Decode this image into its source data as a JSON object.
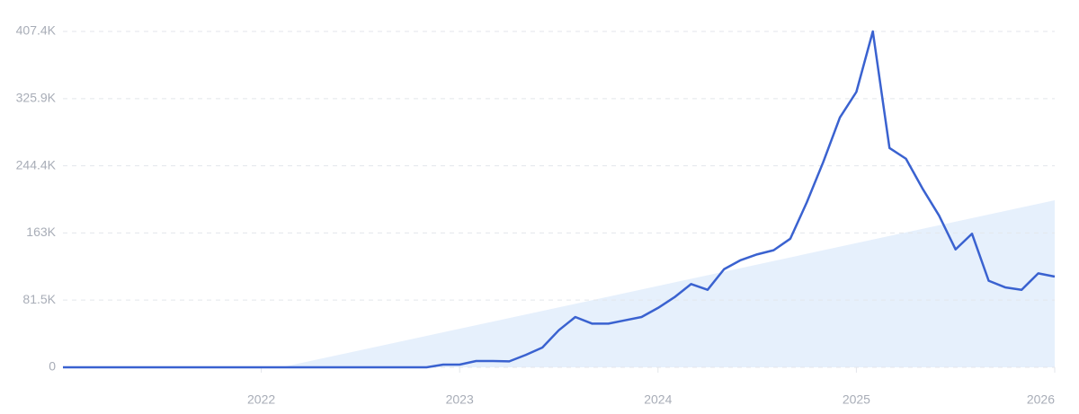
{
  "chart_data": {
    "type": "line",
    "x": [
      2021.0,
      2021.083,
      2021.167,
      2021.25,
      2021.333,
      2021.417,
      2021.5,
      2021.583,
      2021.667,
      2021.75,
      2021.833,
      2021.917,
      2022.0,
      2022.083,
      2022.167,
      2022.25,
      2022.333,
      2022.417,
      2022.5,
      2022.583,
      2022.667,
      2022.75,
      2022.833,
      2022.917,
      2023.0,
      2023.083,
      2023.167,
      2023.25,
      2023.333,
      2023.417,
      2023.5,
      2023.583,
      2023.667,
      2023.75,
      2023.833,
      2023.917,
      2024.0,
      2024.083,
      2024.167,
      2024.25,
      2024.333,
      2024.417,
      2024.5,
      2024.583,
      2024.667,
      2024.75,
      2024.833,
      2024.917,
      2025.0,
      2025.083,
      2025.167,
      2025.25,
      2025.333,
      2025.417,
      2025.5,
      2025.583,
      2025.667,
      2025.75,
      2025.833,
      2025.917,
      2026.0
    ],
    "series": [
      {
        "color": "#3a62d0",
        "values": [
          0,
          0,
          0,
          0,
          0,
          0,
          0,
          0,
          0,
          0,
          0,
          0,
          0,
          0,
          0,
          0,
          0,
          0,
          0,
          0,
          0,
          0,
          0,
          3300,
          3300,
          7600,
          7600,
          7200,
          15000,
          24000,
          45000,
          61000,
          53000,
          53000,
          57000,
          61000,
          72000,
          85000,
          101000,
          94000,
          119000,
          130000,
          137000,
          142000,
          156000,
          200000,
          249000,
          303000,
          334000,
          407400,
          266000,
          253000,
          217000,
          184000,
          143000,
          162000,
          105000,
          97000,
          94000,
          114000,
          110000
        ]
      }
    ],
    "trend": {
      "x": [
        2022.1,
        2026.0
      ],
      "values": [
        0,
        202600
      ],
      "color": "#e6f0fc"
    },
    "xlim": [
      2021.0,
      2026.0
    ],
    "xticks": [
      2022,
      2023,
      2024,
      2025,
      2026
    ],
    "ylim": [
      0,
      407400
    ],
    "yticks": [
      0,
      {
        "value": 81500,
        "label": "81.5K"
      },
      {
        "value": 163000,
        "label": "163K"
      },
      {
        "value": 244400,
        "label": "244.4K"
      },
      {
        "value": 325900,
        "label": "325.9K"
      },
      {
        "value": 407400,
        "label": "407.4K"
      }
    ],
    "grid": true
  }
}
